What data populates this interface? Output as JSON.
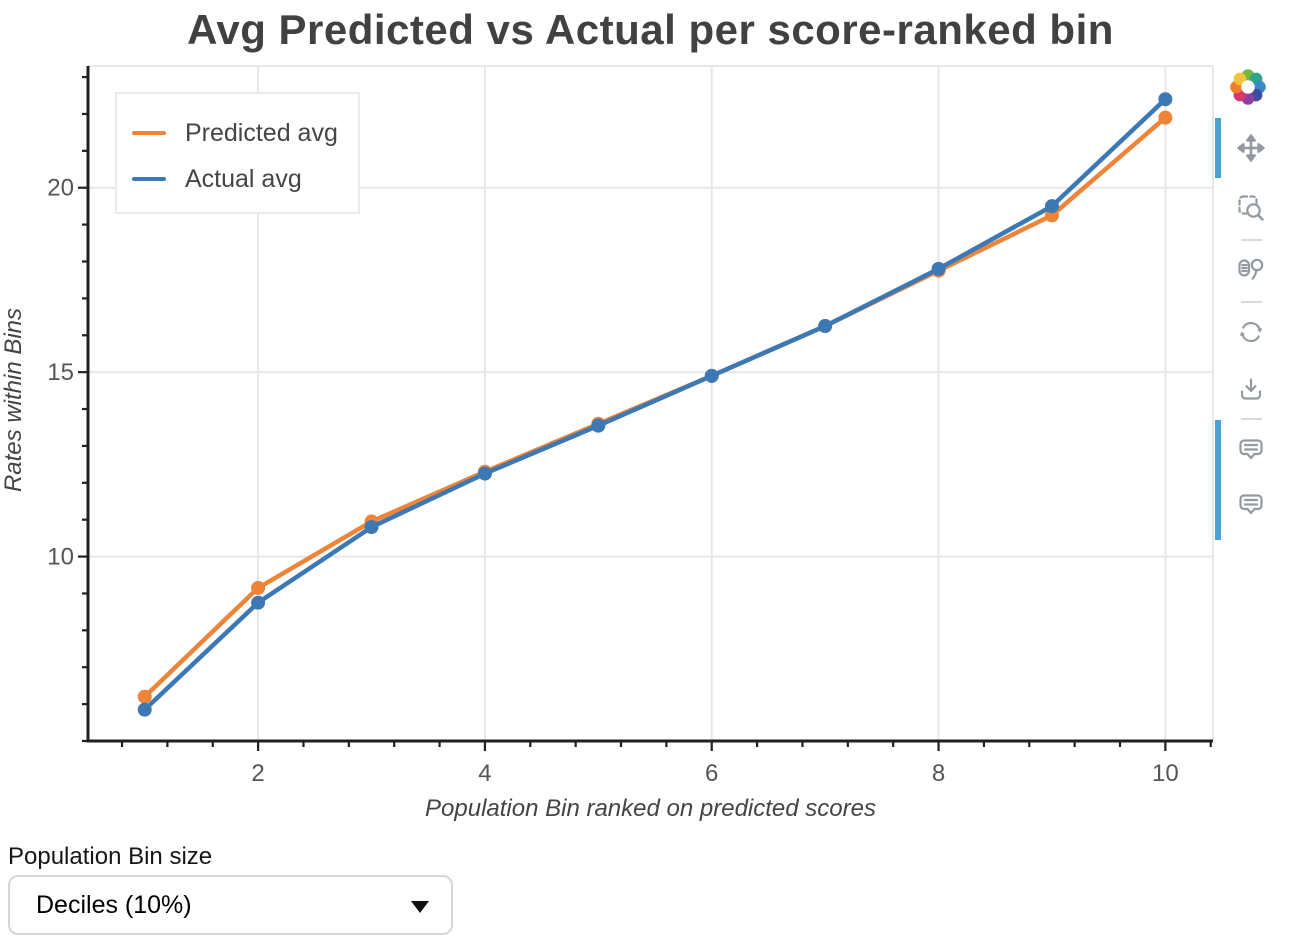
{
  "chart_data": {
    "type": "line",
    "title": "Avg Predicted vs Actual per score-ranked bin",
    "xlabel": "Population Bin ranked on predicted scores",
    "ylabel": "Rates within Bins",
    "x": [
      1,
      2,
      3,
      4,
      5,
      6,
      7,
      8,
      9,
      10
    ],
    "series": [
      {
        "name": "Predicted avg",
        "color": "#ee8438",
        "values": [
          6.2,
          9.15,
          10.95,
          12.3,
          13.6,
          14.9,
          16.25,
          17.75,
          19.25,
          21.9
        ]
      },
      {
        "name": "Actual avg",
        "color": "#3b78b4",
        "values": [
          5.85,
          8.75,
          10.8,
          12.25,
          13.55,
          14.9,
          16.25,
          17.8,
          19.5,
          22.4
        ]
      }
    ],
    "x_ticks": [
      2,
      4,
      6,
      8,
      10
    ],
    "y_ticks": [
      10,
      15,
      20
    ],
    "x_minor_step": 0.4,
    "y_minor_step": 1,
    "x_range": [
      0.5,
      10.42
    ],
    "y_range": [
      5.0,
      23.3
    ],
    "grid": true,
    "legend_position": "top-left",
    "grid_color": "#e7e7e7",
    "axis_color": "#202020",
    "tick_label_color": "#555555"
  },
  "toolbar": {
    "logo": "bokeh",
    "active_color": "#4aa1d8",
    "tools": [
      {
        "name": "pan",
        "active": true
      },
      {
        "name": "box-zoom",
        "active": false
      },
      {
        "name": "lasso-select",
        "active": false
      },
      {
        "name": "reset",
        "active": false
      },
      {
        "name": "save",
        "active": false
      },
      {
        "name": "hover",
        "active": true
      },
      {
        "name": "hover",
        "active": true
      }
    ]
  },
  "controls": {
    "bin_size_label": "Population Bin size",
    "bin_size_value": "Deciles (10%)"
  }
}
